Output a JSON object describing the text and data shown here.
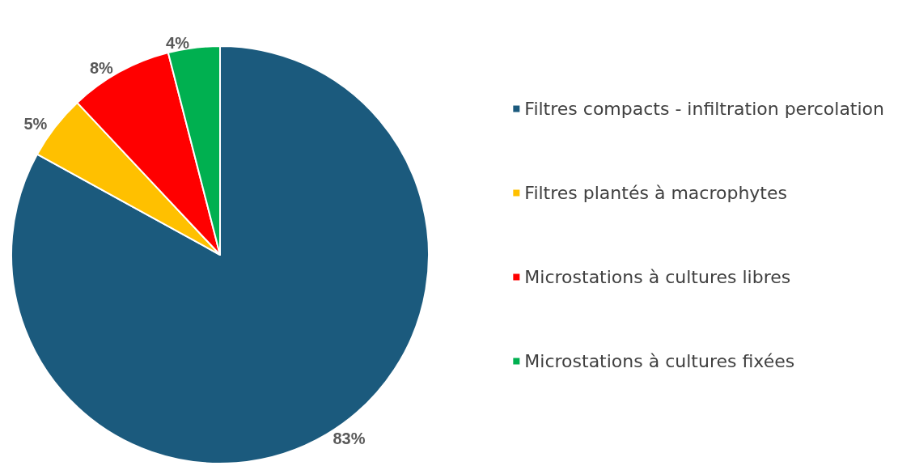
{
  "chart_data": {
    "type": "pie",
    "categories": [
      "Filtres compacts - infiltration percolation",
      "Filtres plantés à macrophytes",
      "Microstations à cultures libres",
      "Microstations à cultures fixées"
    ],
    "values": [
      83,
      5,
      8,
      4
    ],
    "colors": [
      "#1b5a7d",
      "#ffc000",
      "#ff0000",
      "#00b050"
    ],
    "value_labels": [
      "83%",
      "5%",
      "8%",
      "4%"
    ],
    "legend": "right"
  }
}
